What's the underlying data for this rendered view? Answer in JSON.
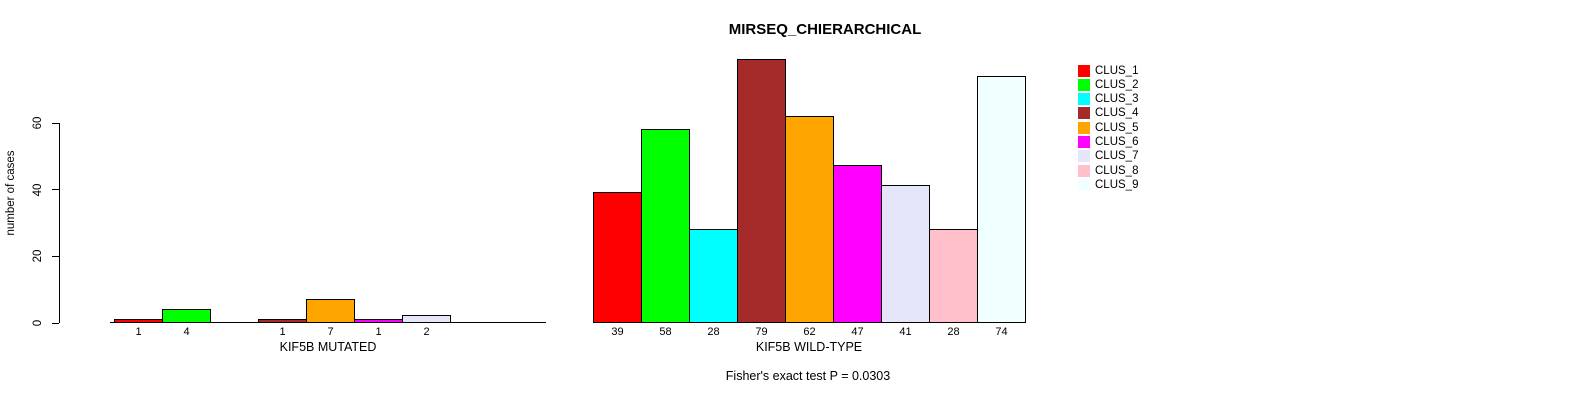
{
  "chart_data": {
    "type": "bar",
    "title": "MIRSEQ_CHIERARCHICAL",
    "ylabel": "number of cases",
    "yticks": [
      0,
      20,
      40,
      60
    ],
    "ylim": [
      0,
      80
    ],
    "grid": false,
    "legend_position": "right",
    "legend_entries": [
      "CLUS_1",
      "CLUS_2",
      "CLUS_3",
      "CLUS_4",
      "CLUS_5",
      "CLUS_6",
      "CLUS_7",
      "CLUS_8",
      "CLUS_9"
    ],
    "colors": [
      "#FF0000",
      "#00FF00",
      "#00FFFF",
      "#A52A2A",
      "#FFA500",
      "#FF00FF",
      "#E6E6FA",
      "#FFC0CB",
      "#F0FFFF"
    ],
    "groups": [
      {
        "label": "KIF5B MUTATED",
        "values": [
          1,
          4,
          0,
          1,
          7,
          1,
          2,
          0,
          0
        ]
      },
      {
        "label": "KIF5B WILD-TYPE",
        "values": [
          39,
          58,
          28,
          79,
          62,
          47,
          41,
          28,
          74
        ]
      }
    ],
    "annotation": "Fisher's exact test P = 0.0303"
  }
}
